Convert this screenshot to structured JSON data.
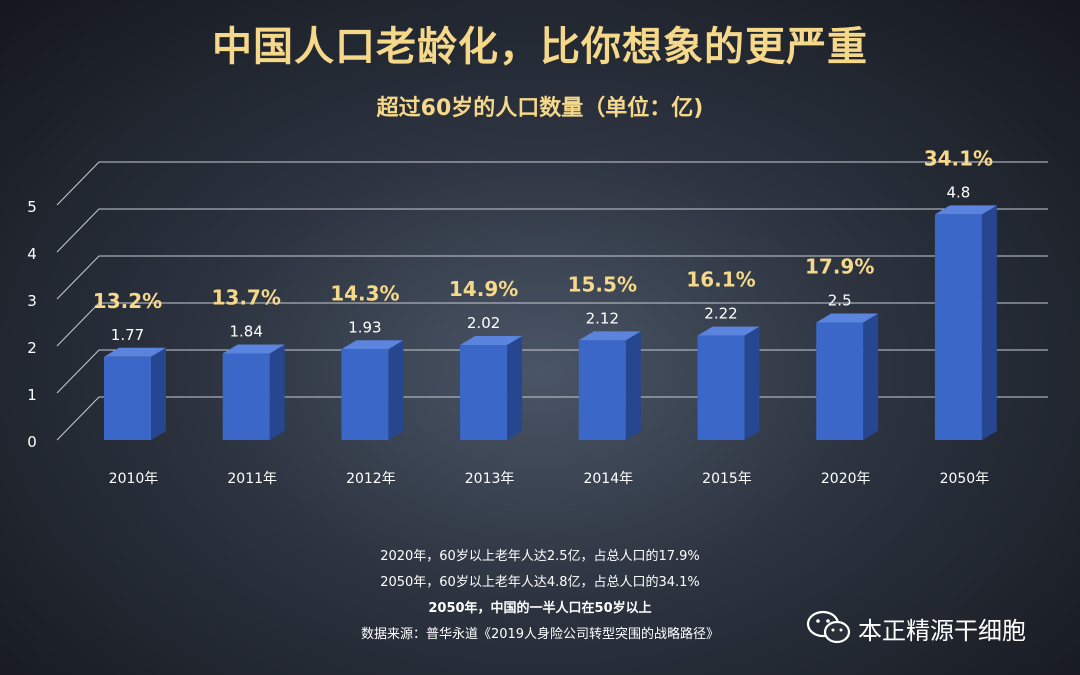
{
  "title": "中国人口老龄化，比你想象的更严重",
  "subtitle": "超过60岁的人口数量（单位：亿)",
  "chart_data": {
    "type": "bar",
    "categories": [
      "2010年",
      "2011年",
      "2012年",
      "2013年",
      "2014年",
      "2015年",
      "2020年",
      "2050年"
    ],
    "values": [
      1.77,
      1.84,
      1.93,
      2.02,
      2.12,
      2.22,
      2.5,
      4.8
    ],
    "value_labels": [
      "1.77",
      "1.84",
      "1.93",
      "2.02",
      "2.12",
      "2.22",
      "2.5",
      "4.8"
    ],
    "percent_labels": [
      "13.2%",
      "13.7%",
      "14.3%",
      "14.9%",
      "15.5%",
      "16.1%",
      "17.9%",
      "34.1%"
    ],
    "y_ticks": [
      "0",
      "1",
      "2",
      "3",
      "4",
      "5"
    ],
    "ylim": [
      0,
      5
    ],
    "grid": true,
    "bar_color": "#3a67c8"
  },
  "notes": {
    "line1": "2020年，60岁以上老年人达2.5亿，占总人口的17.9%",
    "line2": "2050年，60岁以上老年人达4.8亿，占总人口的34.1%",
    "line3": "2050年，中国的一半人口在50岁以上",
    "line4": "数据来源：普华永道《2019人身险公司转型突围的战略路径》"
  },
  "watermark": {
    "text": "本正精源干细胞",
    "icon": "wechat-icon"
  }
}
